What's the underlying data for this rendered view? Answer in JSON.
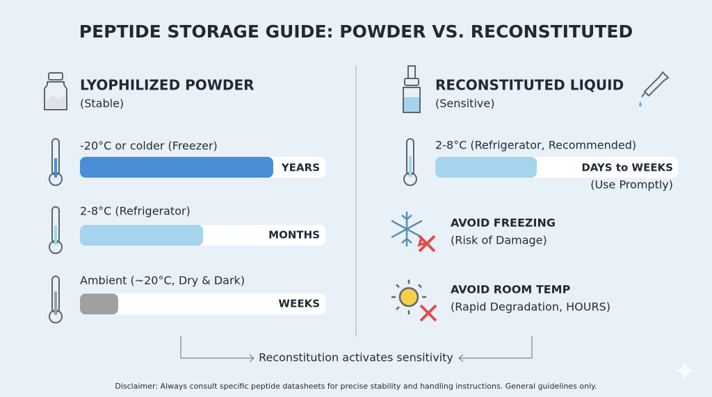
{
  "header": {
    "title": "PEPTIDE STORAGE GUIDE: POWDER VS. RECONSTITUTED"
  },
  "left": {
    "heading": "LYOPHILIZED POWDER",
    "subheading": "(Stable)",
    "rows": [
      {
        "label": "-20°C or colder (Freezer)",
        "duration": "YEARS"
      },
      {
        "label": "2-8°C (Refrigerator)",
        "duration": "MONTHS"
      },
      {
        "label": "Ambient (~20°C, Dry & Dark)",
        "duration": "WEEKS"
      }
    ]
  },
  "right": {
    "heading": "RECONSTITUTED LIQUID",
    "subheading": "(Sensitive)",
    "storage": {
      "label": "2-8°C (Refrigerator, Recommended)",
      "duration": "DAYS to WEEKS",
      "note": "(Use Promptly)"
    },
    "warnings": [
      {
        "title": "AVOID FREEZING",
        "note": "(Risk of Damage)"
      },
      {
        "title": "AVOID ROOM TEMP",
        "note": "(Rapid Degradation, HOURS)"
      }
    ]
  },
  "footer": {
    "flow": "Reconstitution activates sensitivity",
    "disclaimer": "Disclaimer: Always consult specific peptide datasheets for precise stability and handling instructions. General guidelines only."
  }
}
